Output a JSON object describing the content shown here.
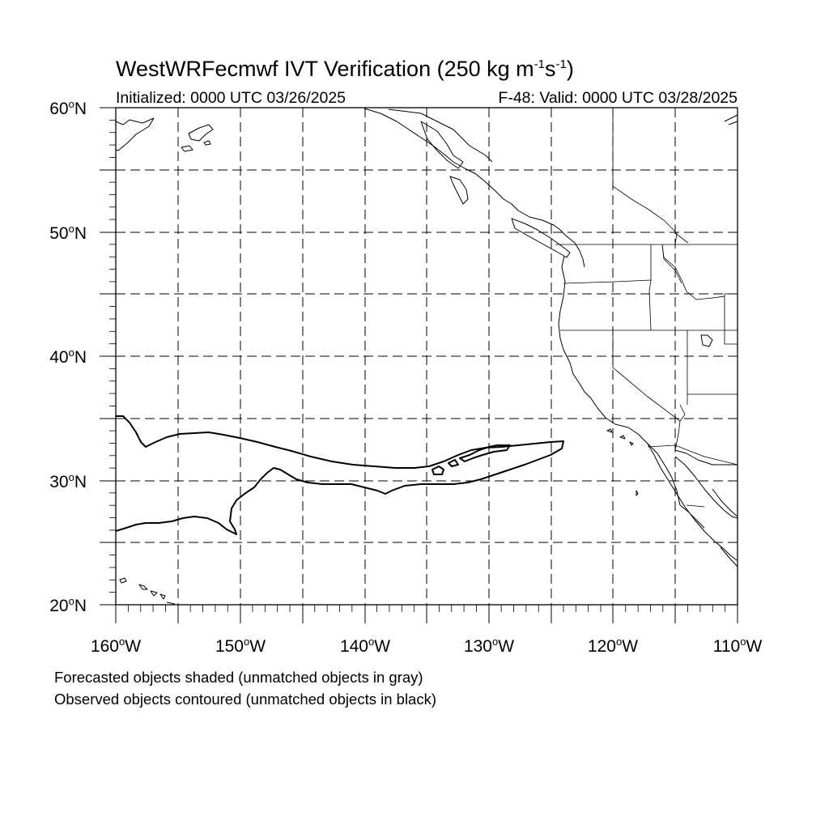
{
  "title": {
    "prefix": "WestWRFecmwf IVT Verification (250 kg m",
    "exp1": "-1",
    "mid": "s",
    "exp2": "-1",
    "suffix": ")"
  },
  "initialized": "Initialized: 0000 UTC 03/26/2025",
  "valid": "F-48: Valid: 0000 UTC 03/28/2025",
  "lat_labels": [
    {
      "num": "60",
      "hemi": "N"
    },
    {
      "num": "50",
      "hemi": "N"
    },
    {
      "num": "40",
      "hemi": "N"
    },
    {
      "num": "30",
      "hemi": "N"
    },
    {
      "num": "20",
      "hemi": "N"
    }
  ],
  "lon_labels": [
    {
      "num": "160",
      "hemi": "W"
    },
    {
      "num": "150",
      "hemi": "W"
    },
    {
      "num": "140",
      "hemi": "W"
    },
    {
      "num": "130",
      "hemi": "W"
    },
    {
      "num": "120",
      "hemi": "W"
    },
    {
      "num": "110",
      "hemi": "W"
    }
  ],
  "notes": {
    "line1": "Forecasted objects shaded (unmatched objects in gray)",
    "line2": "Observed objects contoured (unmatched objects in black)"
  },
  "map": {
    "extent": {
      "lon_min": -160,
      "lon_max": -110,
      "lat_min": 20,
      "lat_max": 60
    },
    "grid_style": "dashed",
    "grid_interval_deg": 5,
    "colors": {
      "coast": "#000000",
      "grid": "#000000",
      "object_contour": "#000000",
      "background": "#ffffff"
    }
  }
}
